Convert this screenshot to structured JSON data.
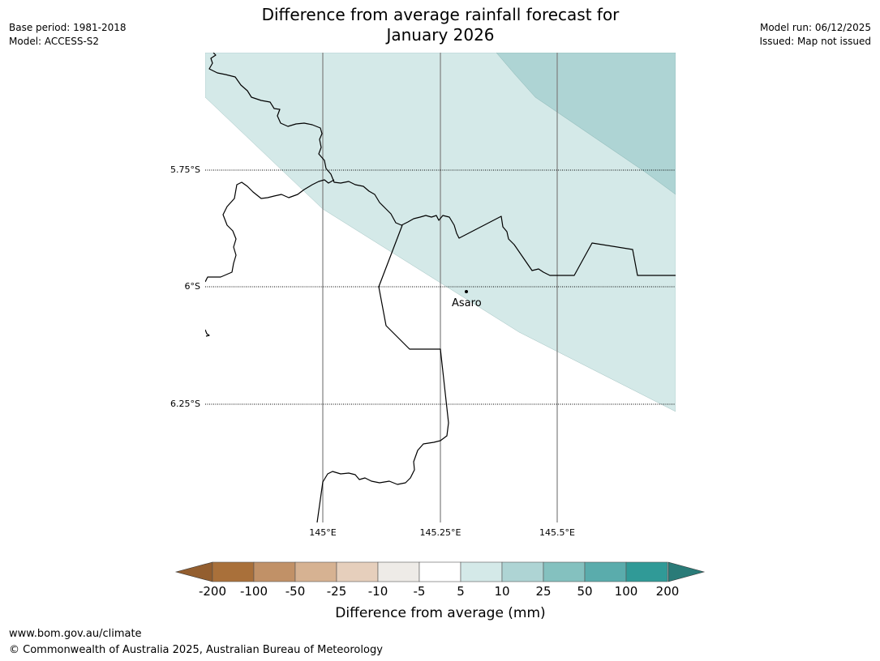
{
  "title_line1": "Difference from average rainfall forecast for",
  "title_line2": "January 2026",
  "meta_left": {
    "base_period": "Base period: 1981-2018",
    "model": "Model: ACCESS-S2"
  },
  "meta_right": {
    "model_run": "Model run: 06/12/2025",
    "issued": "Issued: Map not issued"
  },
  "map": {
    "lat_labels": [
      "5.75°S",
      "6°S",
      "6.25°S"
    ],
    "lon_labels": [
      "145°E",
      "145.25°E",
      "145.5°E"
    ],
    "place": {
      "name": "Asaro"
    },
    "fill_colors": {
      "light": "#d4e9e8",
      "medium": "#aed4d4"
    },
    "border_color": "#000000"
  },
  "colorbar": {
    "title": "Difference from average (mm)",
    "ticks": [
      "-200",
      "-100",
      "-50",
      "-25",
      "-10",
      "-5",
      "5",
      "10",
      "25",
      "50",
      "100",
      "200"
    ],
    "colors": [
      "#a9703a",
      "#c19167",
      "#d6b292",
      "#e6cfbc",
      "#eeebe7",
      "#ffffff",
      "#d4e9e8",
      "#aed4d4",
      "#84c1bf",
      "#5aacac",
      "#309a97"
    ],
    "under_color": "#935e2f",
    "over_color": "#2a7b78"
  },
  "footer": {
    "url": "www.bom.gov.au/climate",
    "copyright": "© Commonwealth of Australia 2025, Australian Bureau of Meteorology"
  }
}
